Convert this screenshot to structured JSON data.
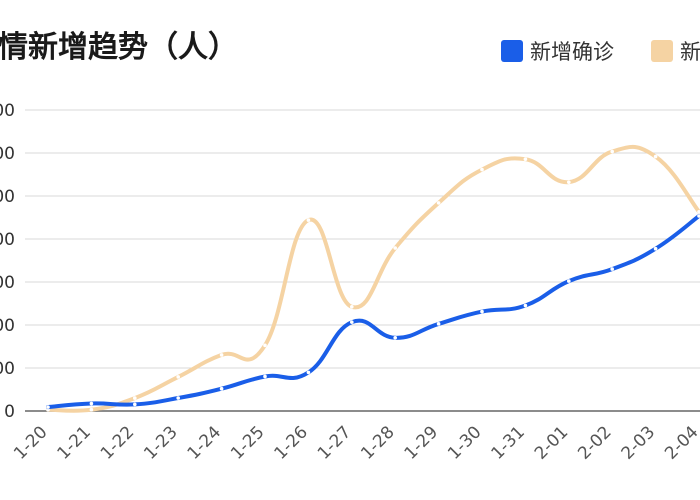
{
  "chart_data": {
    "type": "line",
    "title": "情新增趋势（人）",
    "categories": [
      "1-20",
      "1-21",
      "1-22",
      "1-23",
      "1-24",
      "1-25",
      "1-26",
      "1-27",
      "1-28",
      "1-29",
      "1-30",
      "1-31",
      "2-01",
      "2-02",
      "2-03",
      "2-04"
    ],
    "y_ticks": [
      "0",
      "00",
      "00",
      "00",
      "00",
      "00",
      "00",
      "00"
    ],
    "ylim": [
      0,
      6000
    ],
    "grid": true,
    "legend_position": "top-right",
    "series": [
      {
        "name": "新增确诊",
        "color": "#1a5ee8",
        "values": [
          77,
          149,
          131,
          259,
          444,
          688,
          769,
          1771,
          1459,
          1737,
          1982,
          2102,
          2590,
          2829,
          3235,
          3887
        ]
      },
      {
        "name": "新",
        "color": "#f5d3a3",
        "values": [
          27,
          26,
          257,
          680,
          1118,
          1309,
          3806,
          2077,
          3248,
          4148,
          4812,
          5019,
          4562,
          5173,
          5072,
          3971
        ]
      }
    ]
  }
}
